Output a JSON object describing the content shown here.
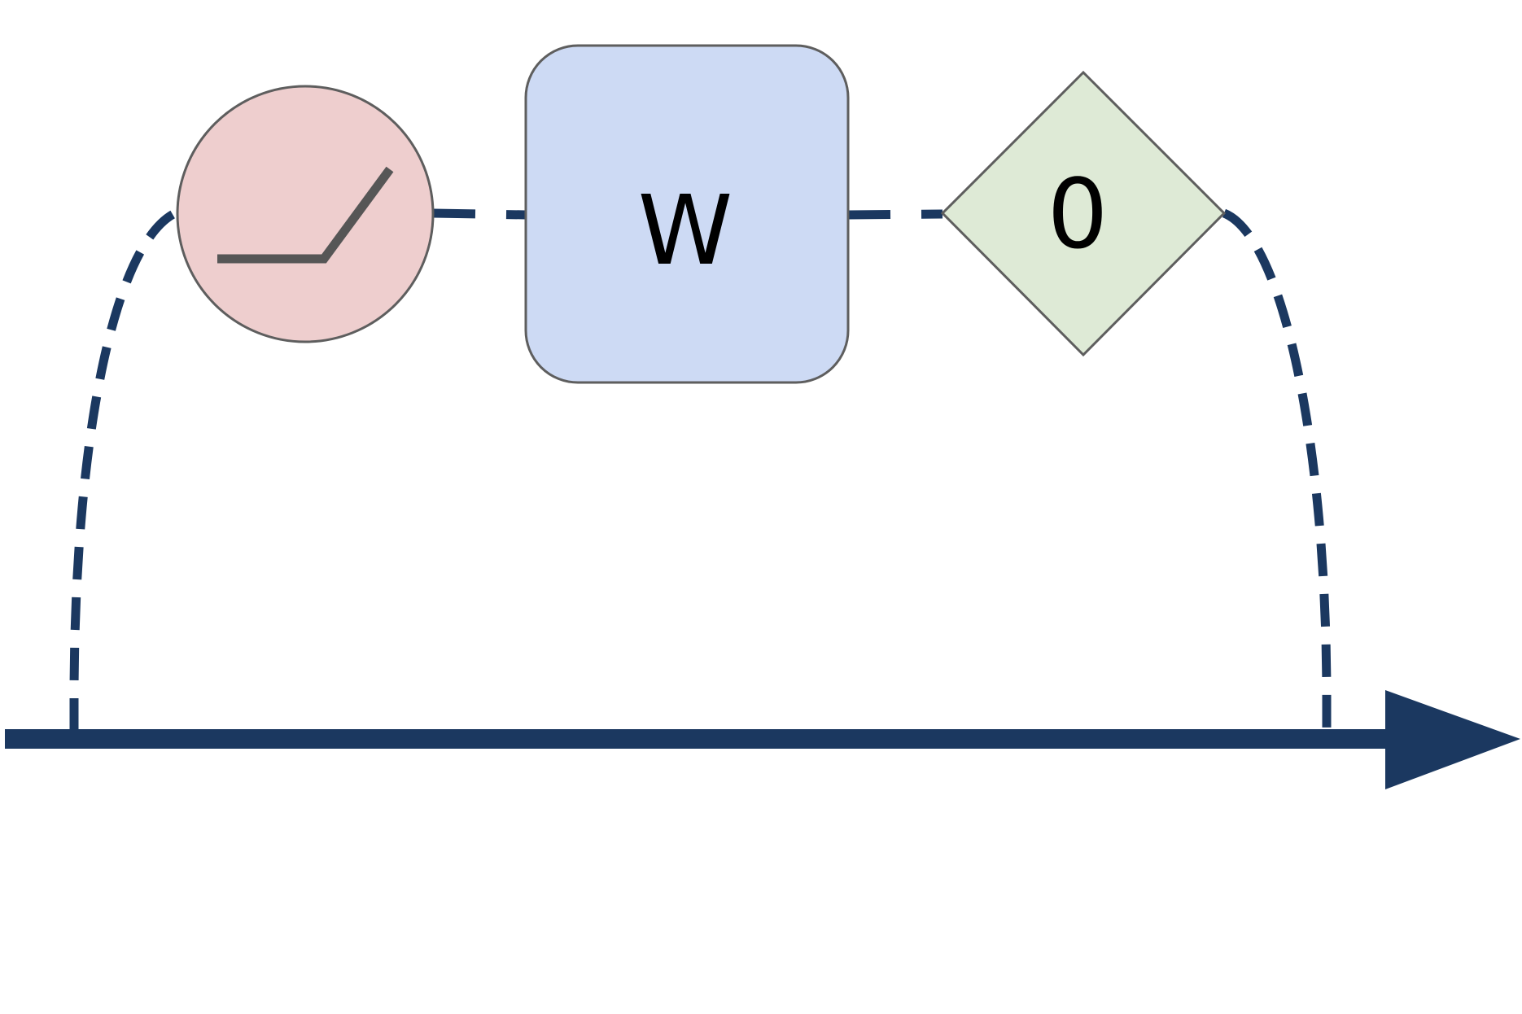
{
  "colors": {
    "connector": "#1b3860",
    "node_stroke": "#5e5e5e",
    "relu_fill": "#eecece",
    "relu_glyph": "#565656",
    "weight_fill": "#cddaf4",
    "zero_fill": "#deead6",
    "label_text": "#000000"
  },
  "nodes": {
    "activation": {
      "icon": "relu-icon"
    },
    "weight": {
      "label": "W"
    },
    "zero": {
      "label": "0"
    }
  },
  "connections": {
    "style": "dashed",
    "arrow_direction": "right"
  }
}
